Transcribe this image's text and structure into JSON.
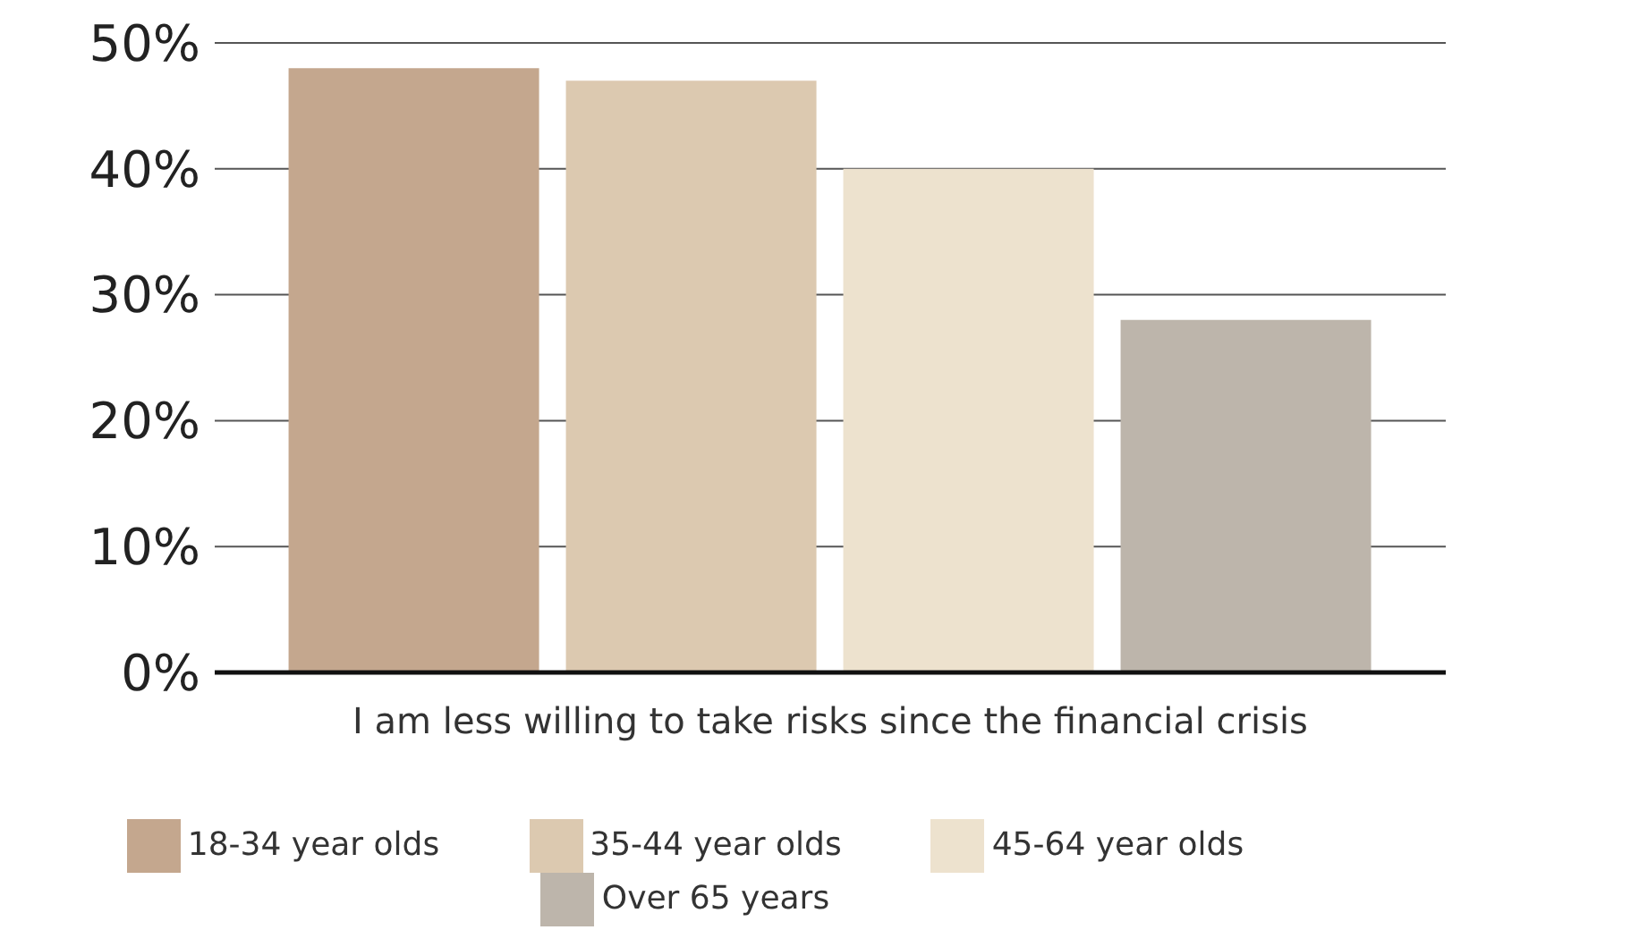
{
  "chart_data": {
    "type": "bar",
    "categories": [
      "I am less willing to take risks since the financial crisis"
    ],
    "series": [
      {
        "name": "18-34 year olds",
        "color": "#c4a78e",
        "values": [
          48
        ]
      },
      {
        "name": "35-44 year olds",
        "color": "#dcc9b0",
        "values": [
          47
        ]
      },
      {
        "name": "45-64 year olds",
        "color": "#ede2ce",
        "values": [
          40
        ]
      },
      {
        "name": "Over 65 years",
        "color": "#bdb5ab",
        "values": [
          28
        ]
      }
    ],
    "ylim": [
      0,
      50
    ],
    "yticks": [
      {
        "value": 0,
        "label": "0%"
      },
      {
        "value": 10,
        "label": "10%"
      },
      {
        "value": 20,
        "label": "20%"
      },
      {
        "value": 30,
        "label": "30%"
      },
      {
        "value": 40,
        "label": "40%"
      },
      {
        "value": 50,
        "label": "50%"
      }
    ],
    "grid": "y",
    "legend": "bottom"
  }
}
